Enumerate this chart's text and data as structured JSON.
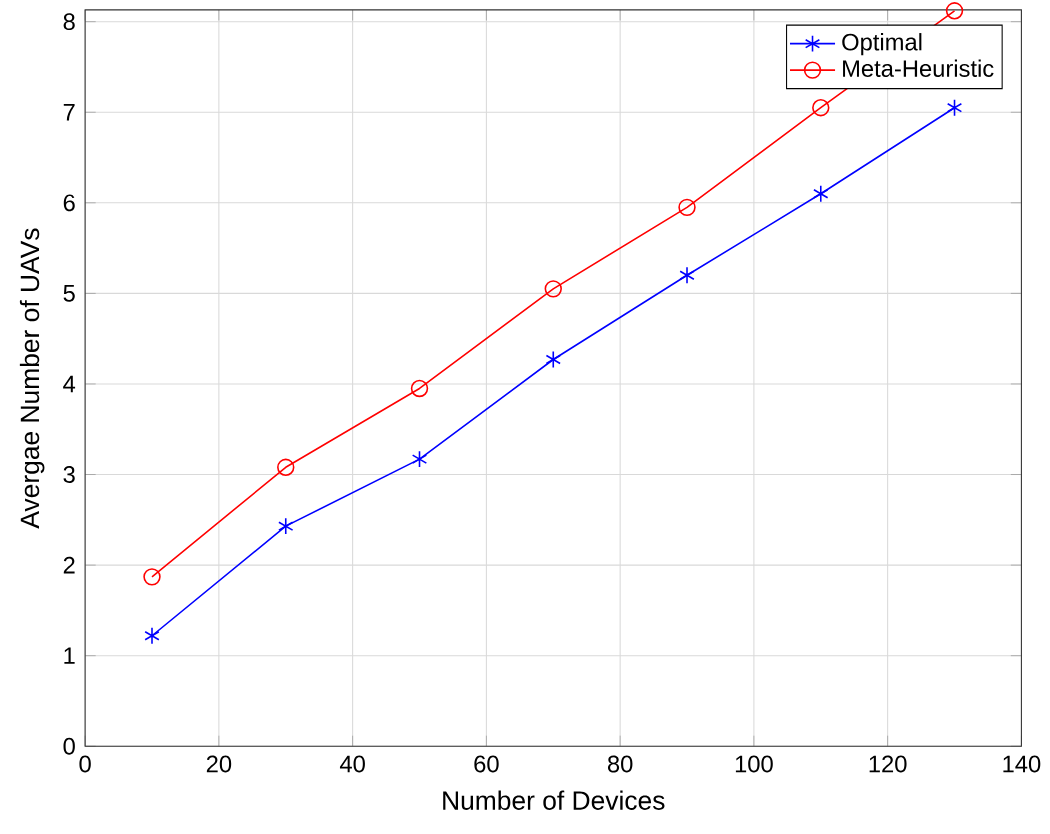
{
  "chart_data": {
    "type": "line",
    "xlabel": "Number of Devices",
    "ylabel": "Avergae Number of UAVs",
    "x": [
      10,
      30,
      50,
      70,
      90,
      110,
      130
    ],
    "series": [
      {
        "name": "Optimal",
        "color": "#0000ff",
        "marker": "cross",
        "values": [
          1.22,
          2.43,
          3.17,
          4.27,
          5.2,
          6.1,
          7.05
        ]
      },
      {
        "name": "Meta-Heuristic",
        "color": "#ff0000",
        "marker": "circle",
        "values": [
          1.87,
          3.08,
          3.95,
          5.05,
          5.95,
          7.05,
          8.12
        ]
      }
    ],
    "xlim": [
      0,
      140
    ],
    "ylim": [
      0,
      8.13
    ],
    "xticks": [
      0,
      20,
      40,
      60,
      80,
      100,
      120,
      140
    ],
    "yticks": [
      0,
      1,
      2,
      3,
      4,
      5,
      6,
      7,
      8
    ],
    "grid": true,
    "legend": "top right",
    "line_style": "solid"
  }
}
